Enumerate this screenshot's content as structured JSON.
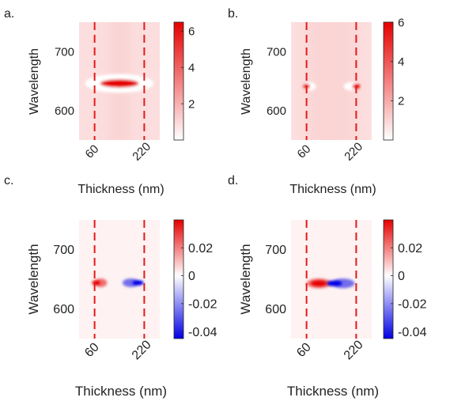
{
  "chart_data": [
    {
      "panel_label": "a.",
      "type": "heatmap",
      "xlabel": "Thickness (nm)",
      "ylabel": "Wavelength",
      "x_ticks": [
        60,
        220
      ],
      "y_ticks": [
        600,
        700
      ],
      "xlim": [
        10,
        270
      ],
      "ylim": [
        550,
        750
      ],
      "markers_x": [
        60,
        220
      ],
      "colorbar": {
        "min": 0,
        "max": 6.5,
        "ticks": [
          2,
          4,
          6
        ],
        "colors": [
          "#0000e6",
          "#ffffff",
          "#e60000"
        ]
      },
      "features": [
        {
          "kind": "hotspot",
          "x_from": 40,
          "x_to": 240,
          "y_from": 636,
          "y_to": 656,
          "center_x": 140,
          "peak": 6.5
        }
      ]
    },
    {
      "panel_label": "b.",
      "type": "heatmap",
      "xlabel": "Thickness (nm)",
      "ylabel": "Wavelength",
      "x_ticks": [
        60,
        220
      ],
      "y_ticks": [
        600,
        700
      ],
      "xlim": [
        10,
        270
      ],
      "ylim": [
        550,
        750
      ],
      "markers_x": [
        60,
        220
      ],
      "colorbar": {
        "min": 0,
        "max": 6,
        "ticks": [
          2,
          4,
          6
        ],
        "colors": [
          "#0000e6",
          "#ffffff",
          "#e60000"
        ]
      },
      "features": [
        {
          "kind": "hotspot",
          "x_from": 50,
          "x_to": 90,
          "y_from": 634,
          "y_to": 648,
          "center_x": 60,
          "peak": 6
        },
        {
          "kind": "hotspot",
          "x_from": 180,
          "x_to": 225,
          "y_from": 634,
          "y_to": 648,
          "center_x": 220,
          "peak": 6
        }
      ]
    },
    {
      "panel_label": "c.",
      "type": "heatmap",
      "xlabel": "Thickness (nm)",
      "ylabel": "Wavelength",
      "x_ticks": [
        60,
        220
      ],
      "y_ticks": [
        600,
        700
      ],
      "xlim": [
        10,
        270
      ],
      "ylim": [
        550,
        750
      ],
      "markers_x": [
        60,
        220
      ],
      "colorbar": {
        "min": -0.045,
        "max": 0.04,
        "ticks": [
          0.02,
          0,
          -0.02,
          -0.04
        ],
        "tick_labels": [
          "0.02",
          "0",
          "-0.02",
          "-0.04"
        ],
        "colors": [
          "#0000e6",
          "#ffffff",
          "#e60000"
        ]
      },
      "features": [
        {
          "kind": "hotspot",
          "x_from": 60,
          "x_to": 100,
          "y_from": 636,
          "y_to": 652,
          "center_x": 65,
          "peak": 0.04
        },
        {
          "kind": "hotspot",
          "x_from": 150,
          "x_to": 205,
          "y_from": 636,
          "y_to": 652,
          "center_x": 200,
          "peak": -0.045
        }
      ]
    },
    {
      "panel_label": "d.",
      "type": "heatmap",
      "xlabel": "Thickness (nm)",
      "ylabel": "Wavelength",
      "x_ticks": [
        60,
        220
      ],
      "y_ticks": [
        600,
        700
      ],
      "xlim": [
        10,
        270
      ],
      "ylim": [
        550,
        750
      ],
      "markers_x": [
        60,
        220
      ],
      "colorbar": {
        "min": -0.045,
        "max": 0.04,
        "ticks": [
          0.02,
          0,
          -0.02,
          -0.04
        ],
        "tick_labels": [
          "0.02",
          "0",
          "-0.02",
          "-0.04"
        ],
        "colors": [
          "#0000e6",
          "#ffffff",
          "#e60000"
        ]
      },
      "features": [
        {
          "kind": "hotspot",
          "x_from": 60,
          "x_to": 140,
          "y_from": 634,
          "y_to": 652,
          "center_x": 100,
          "peak": 0.04
        },
        {
          "kind": "hotspot",
          "x_from": 140,
          "x_to": 215,
          "y_from": 634,
          "y_to": 652,
          "center_x": 150,
          "peak": -0.045
        }
      ]
    }
  ]
}
